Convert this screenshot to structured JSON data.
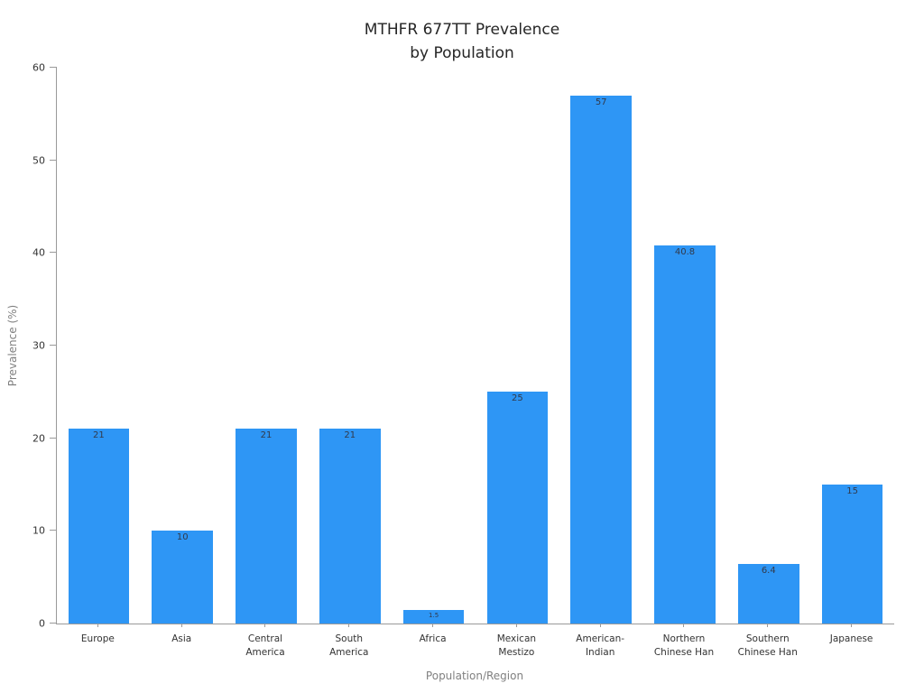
{
  "chart_data": {
    "type": "bar",
    "title": "MTHFR 677TT Prevalence\nby Population",
    "xlabel": "Population/Region",
    "ylabel": "Prevalence (%)",
    "ylim": [
      0,
      60
    ],
    "yticks": [
      0,
      10,
      20,
      30,
      40,
      50,
      60
    ],
    "categories": [
      "Europe",
      "Asia",
      "Central\nAmerica",
      "South\nAmerica",
      "Africa",
      "Mexican\nMestizo",
      "American-\nIndian",
      "Northern\nChinese Han",
      "Southern\nChinese Han",
      "Japanese"
    ],
    "values": [
      21,
      10,
      21,
      21,
      1.5,
      25,
      57,
      40.8,
      6.4,
      15
    ],
    "value_labels": [
      "21",
      "10",
      "21",
      "21",
      "1.5",
      "25",
      "57",
      "40.8",
      "6.4",
      "15"
    ],
    "bar_color": "#2e96f5",
    "legend": "none",
    "grid": "off"
  }
}
